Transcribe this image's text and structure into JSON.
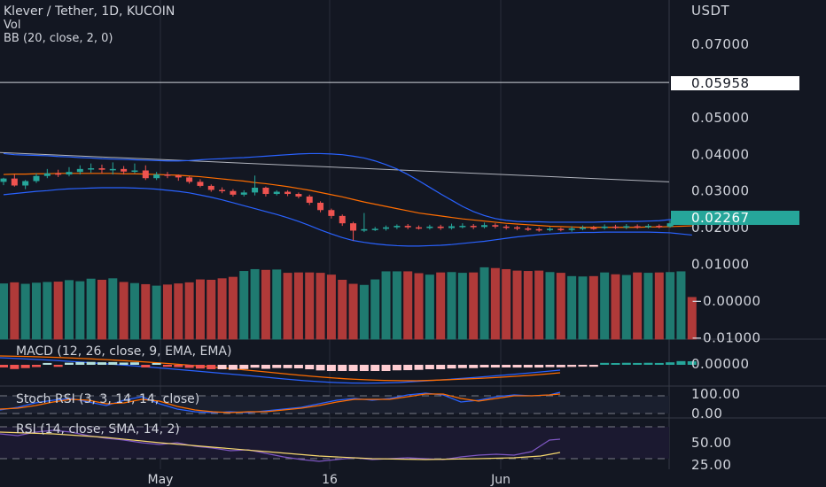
{
  "colors": {
    "background": "#131722",
    "up": "#26a69a",
    "down": "#ef5350",
    "bb_band": "#2962ff",
    "bb_basis": "#ff6d00",
    "price_tag": "#26a69a",
    "text": "#d1d4dc"
  },
  "chart_data": {
    "type": "candlestick",
    "title": "Klever / Tether, 1D, KUCOIN",
    "indicator_labels": {
      "volume": "Vol",
      "bollinger": "BB (20, close, 2, 0)",
      "macd": "MACD (12, 26, close, 9, EMA, EMA)",
      "stoch_rsi": "Stoch RSI (3, 3, 14, 14, close)",
      "rsi": "RSI (14, close, SMA, 14, 2)"
    },
    "price_axis": {
      "unit": "USDT",
      "ticks": [
        "0.07000",
        "0.05000",
        "0.04000",
        "0.03000",
        "0.02000",
        "0.01000",
        "−0.00000",
        "−0.01000"
      ],
      "tick_values": [
        0.07,
        0.05,
        0.04,
        0.03,
        0.02,
        0.01,
        0.0,
        -0.01
      ],
      "range": [
        -0.01,
        0.08
      ]
    },
    "macd_axis": {
      "ticks": [
        "0.00000"
      ]
    },
    "stoch_axis": {
      "ticks": [
        "100.00",
        "0.00"
      ]
    },
    "rsi_axis": {
      "ticks": [
        "50.00",
        "25.00"
      ]
    },
    "horizontal_line": {
      "price": 0.05958,
      "label": "0.05958"
    },
    "last_price": {
      "price": 0.02267,
      "label": "0.02267"
    },
    "trendline": {
      "start": 0.0405,
      "end": 0.0325
    },
    "x_axis_labels": [
      "May",
      "16",
      "Jun"
    ],
    "candles": [
      [
        0.0325,
        0.0334,
        0.0336,
        0.0316
      ],
      [
        0.0334,
        0.0315,
        0.0345,
        0.0312
      ],
      [
        0.0315,
        0.0327,
        0.033,
        0.0305
      ],
      [
        0.0327,
        0.0341,
        0.0348,
        0.0322
      ],
      [
        0.0341,
        0.0348,
        0.036,
        0.0335
      ],
      [
        0.0348,
        0.0345,
        0.0358,
        0.0338
      ],
      [
        0.0345,
        0.0352,
        0.0365,
        0.034
      ],
      [
        0.0352,
        0.036,
        0.037,
        0.0345
      ],
      [
        0.036,
        0.0362,
        0.0375,
        0.035
      ],
      [
        0.0362,
        0.0358,
        0.0372,
        0.0348
      ],
      [
        0.0358,
        0.036,
        0.0378,
        0.0345
      ],
      [
        0.036,
        0.0353,
        0.0368,
        0.0345
      ],
      [
        0.0353,
        0.0356,
        0.0375,
        0.0348
      ],
      [
        0.0356,
        0.0335,
        0.037,
        0.033
      ],
      [
        0.0335,
        0.0345,
        0.0352,
        0.033
      ],
      [
        0.0345,
        0.0342,
        0.0352,
        0.0335
      ],
      [
        0.0342,
        0.0337,
        0.0345,
        0.0328
      ],
      [
        0.0337,
        0.0325,
        0.034,
        0.032
      ],
      [
        0.0325,
        0.0314,
        0.0332,
        0.031
      ],
      [
        0.0314,
        0.0303,
        0.0318,
        0.0298
      ],
      [
        0.0303,
        0.03,
        0.031,
        0.0294
      ],
      [
        0.03,
        0.029,
        0.0305,
        0.0285
      ],
      [
        0.029,
        0.0296,
        0.0302,
        0.0285
      ],
      [
        0.0296,
        0.0309,
        0.0342,
        0.0288
      ],
      [
        0.0309,
        0.0292,
        0.0312,
        0.0285
      ],
      [
        0.0292,
        0.0298,
        0.0302,
        0.0288
      ],
      [
        0.0298,
        0.0292,
        0.0302,
        0.0286
      ],
      [
        0.0292,
        0.0285,
        0.0296,
        0.028
      ],
      [
        0.0285,
        0.0268,
        0.029,
        0.0262
      ],
      [
        0.0268,
        0.0248,
        0.0272,
        0.0242
      ],
      [
        0.0248,
        0.0232,
        0.0252,
        0.0225
      ],
      [
        0.0232,
        0.0212,
        0.0236,
        0.0205
      ],
      [
        0.0212,
        0.0192,
        0.0216,
        0.0165
      ],
      [
        0.0192,
        0.0196,
        0.024,
        0.0188
      ],
      [
        0.0196,
        0.0197,
        0.0202,
        0.0191
      ],
      [
        0.0197,
        0.0201,
        0.0206,
        0.0192
      ],
      [
        0.0201,
        0.0205,
        0.0209,
        0.0196
      ],
      [
        0.0205,
        0.0201,
        0.021,
        0.0196
      ],
      [
        0.0201,
        0.0199,
        0.0206,
        0.0195
      ],
      [
        0.0199,
        0.0203,
        0.0208,
        0.0195
      ],
      [
        0.0203,
        0.0199,
        0.0208,
        0.0194
      ],
      [
        0.0199,
        0.0204,
        0.0211,
        0.0195
      ],
      [
        0.0204,
        0.0205,
        0.0212,
        0.0198
      ],
      [
        0.0205,
        0.0202,
        0.021,
        0.0196
      ],
      [
        0.0202,
        0.0207,
        0.0214,
        0.0198
      ],
      [
        0.0207,
        0.0203,
        0.0212,
        0.0198
      ],
      [
        0.0203,
        0.0201,
        0.0208,
        0.0195
      ],
      [
        0.0201,
        0.0198,
        0.0205,
        0.0193
      ],
      [
        0.0198,
        0.0196,
        0.0203,
        0.0191
      ],
      [
        0.0196,
        0.0194,
        0.0201,
        0.0189
      ],
      [
        0.0194,
        0.0197,
        0.0202,
        0.019
      ],
      [
        0.0197,
        0.0194,
        0.02,
        0.019
      ],
      [
        0.0194,
        0.0198,
        0.0204,
        0.0189
      ],
      [
        0.0198,
        0.02,
        0.0206,
        0.0193
      ],
      [
        0.02,
        0.0199,
        0.0205,
        0.0194
      ],
      [
        0.0199,
        0.0203,
        0.0209,
        0.0195
      ],
      [
        0.0203,
        0.0201,
        0.0208,
        0.0196
      ],
      [
        0.0201,
        0.0204,
        0.021,
        0.0196
      ],
      [
        0.0204,
        0.0202,
        0.0209,
        0.0197
      ],
      [
        0.0202,
        0.0205,
        0.021,
        0.0198
      ],
      [
        0.0205,
        0.0203,
        0.0209,
        0.0198
      ],
      [
        0.0203,
        0.0212,
        0.022,
        0.02
      ],
      [
        0.0212,
        0.0228,
        0.0238,
        0.021
      ],
      [
        0.0228,
        0.0227,
        0.0233,
        0.0222
      ]
    ],
    "bollinger": {
      "upper": [
        0.0402,
        0.0399,
        0.0398,
        0.0397,
        0.0396,
        0.0394,
        0.0393,
        0.0391,
        0.039,
        0.0388,
        0.0387,
        0.0386,
        0.0385,
        0.0384,
        0.0383,
        0.0382,
        0.0382,
        0.0383,
        0.0385,
        0.0387,
        0.0388,
        0.039,
        0.0391,
        0.0393,
        0.0395,
        0.0397,
        0.0399,
        0.0401,
        0.0402,
        0.0402,
        0.0401,
        0.0399,
        0.0395,
        0.039,
        0.0382,
        0.0372,
        0.036,
        0.0345,
        0.0328,
        0.031,
        0.0292,
        0.0275,
        0.0258,
        0.0244,
        0.0233,
        0.0225,
        0.022,
        0.0217,
        0.0216,
        0.0216,
        0.0215,
        0.0215,
        0.0215,
        0.0215,
        0.0215,
        0.0216,
        0.0216,
        0.0217,
        0.0217,
        0.0218,
        0.0219,
        0.0222,
        0.0228,
        0.0233
      ],
      "basis": [
        0.0345,
        0.0346,
        0.0346,
        0.0347,
        0.0347,
        0.0348,
        0.0348,
        0.0348,
        0.0348,
        0.0348,
        0.0348,
        0.0347,
        0.0347,
        0.0346,
        0.0345,
        0.0344,
        0.0343,
        0.0341,
        0.0339,
        0.0336,
        0.0333,
        0.033,
        0.0327,
        0.0323,
        0.032,
        0.0316,
        0.0312,
        0.0307,
        0.0302,
        0.0296,
        0.029,
        0.0284,
        0.0277,
        0.027,
        0.0264,
        0.0258,
        0.0252,
        0.0246,
        0.024,
        0.0236,
        0.0232,
        0.0228,
        0.0224,
        0.0221,
        0.0218,
        0.0215,
        0.0212,
        0.021,
        0.0208,
        0.0206,
        0.0204,
        0.0203,
        0.0202,
        0.0201,
        0.0201,
        0.0201,
        0.0201,
        0.0201,
        0.0201,
        0.0202,
        0.0202,
        0.0203,
        0.0204,
        0.0205
      ],
      "lower": [
        0.029,
        0.0293,
        0.0296,
        0.0299,
        0.0301,
        0.0304,
        0.0306,
        0.0307,
        0.0308,
        0.0309,
        0.0309,
        0.0309,
        0.0308,
        0.0307,
        0.0305,
        0.0302,
        0.0299,
        0.0295,
        0.0289,
        0.0283,
        0.0276,
        0.0268,
        0.026,
        0.0252,
        0.0244,
        0.0236,
        0.0227,
        0.0217,
        0.0206,
        0.0194,
        0.0183,
        0.0173,
        0.0165,
        0.016,
        0.0156,
        0.0153,
        0.0151,
        0.015,
        0.015,
        0.0151,
        0.0152,
        0.0154,
        0.0157,
        0.016,
        0.0163,
        0.0167,
        0.0171,
        0.0175,
        0.0178,
        0.0181,
        0.0183,
        0.0185,
        0.0186,
        0.0187,
        0.0187,
        0.0188,
        0.0188,
        0.0188,
        0.0188,
        0.0188,
        0.0187,
        0.0186,
        0.0183,
        0.018
      ]
    },
    "volume": [
      0.0048,
      0.0051,
      0.0047,
      0.005,
      0.0052,
      0.0053,
      0.0057,
      0.0054,
      0.0061,
      0.0058,
      0.0062,
      0.0052,
      0.0049,
      0.0046,
      0.0042,
      0.0045,
      0.0048,
      0.0051,
      0.0059,
      0.0058,
      0.0062,
      0.0066,
      0.0082,
      0.0087,
      0.0085,
      0.0086,
      0.0077,
      0.0078,
      0.0078,
      0.0077,
      0.0072,
      0.0058,
      0.0047,
      0.0044,
      0.0059,
      0.0081,
      0.0081,
      0.0081,
      0.0076,
      0.0072,
      0.0078,
      0.0079,
      0.0077,
      0.0078,
      0.0092,
      0.009,
      0.0087,
      0.0083,
      0.0082,
      0.0083,
      0.0079,
      0.0077,
      0.0068,
      0.0067,
      0.0068,
      0.0078,
      0.0073,
      0.0071,
      0.0078,
      0.0077,
      0.0078,
      0.0079,
      0.0081,
      0.0011
    ]
  }
}
